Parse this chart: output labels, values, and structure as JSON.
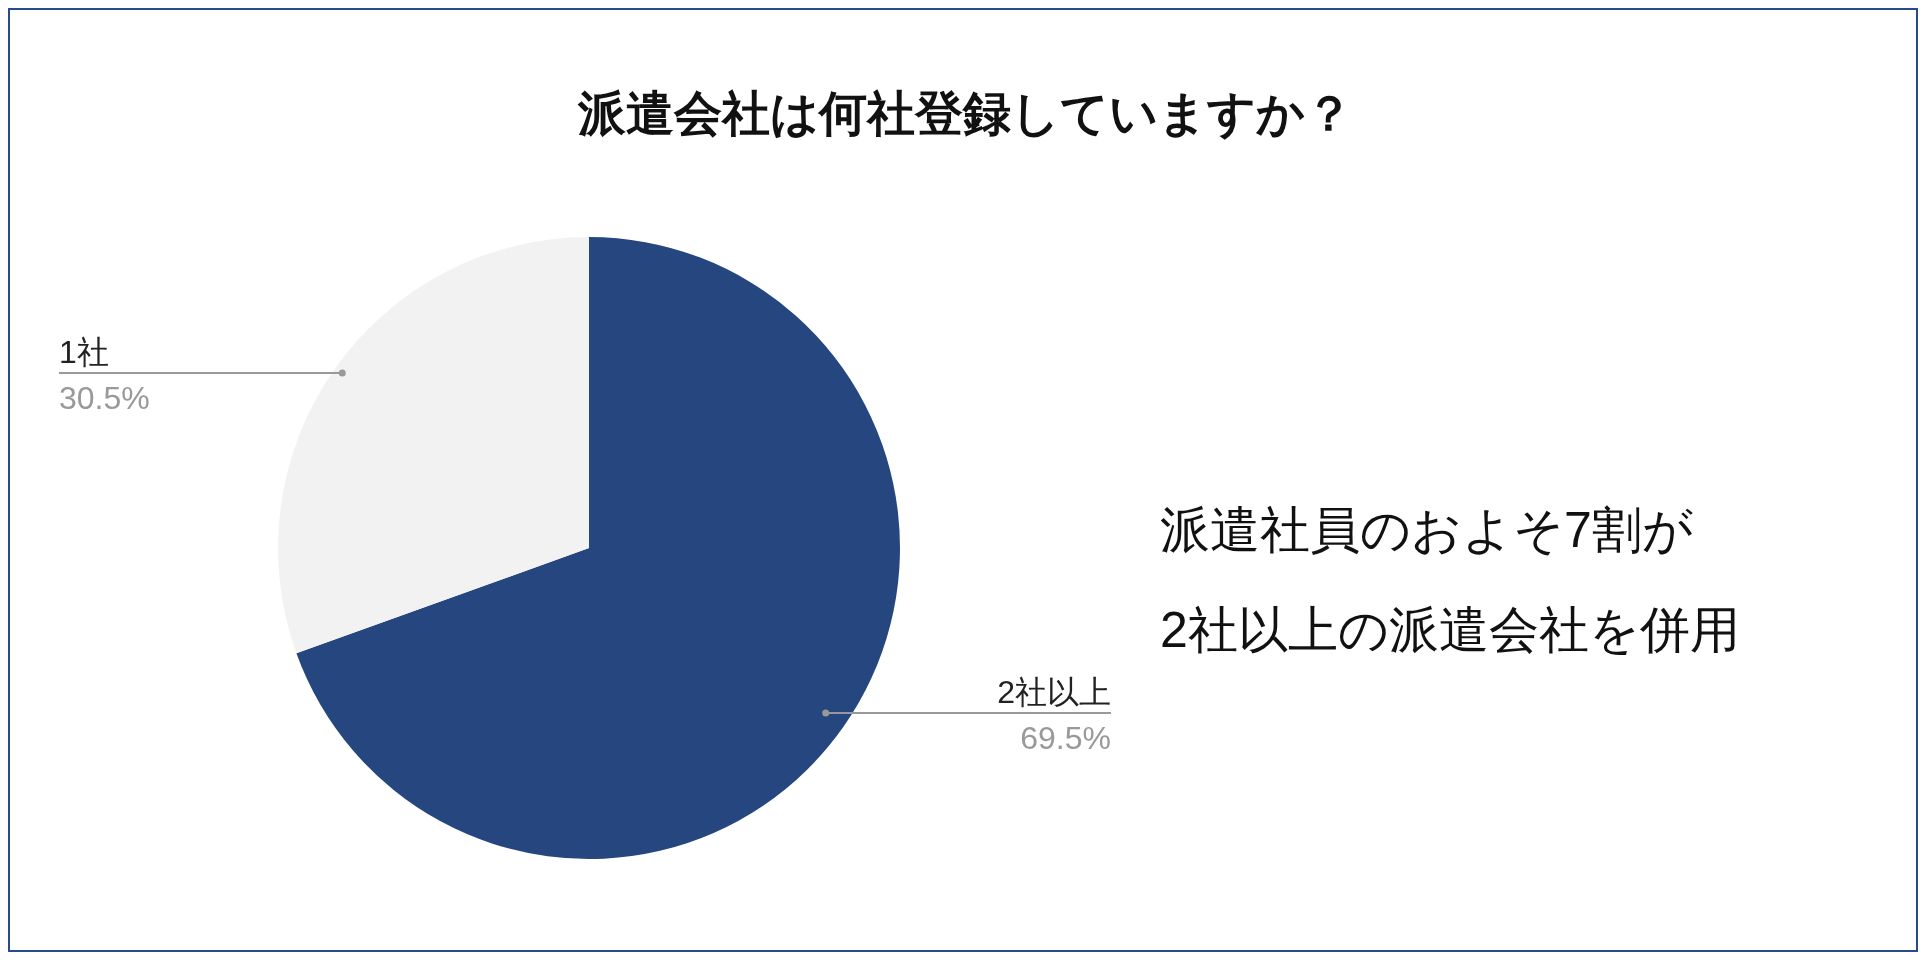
{
  "chart_data": {
    "type": "pie",
    "title": "派遣会社は何社登録していますか？",
    "categories": [
      "2社以上",
      "1社"
    ],
    "values": [
      69.5,
      30.5
    ],
    "colors": [
      "#26467f",
      "#f2f2f2"
    ],
    "value_labels": [
      "69.5%",
      "30.5%"
    ],
    "annotations": [
      "派遣社員のおよそ7割が",
      "2社以上の派遣会社を併用"
    ],
    "legend": false
  }
}
